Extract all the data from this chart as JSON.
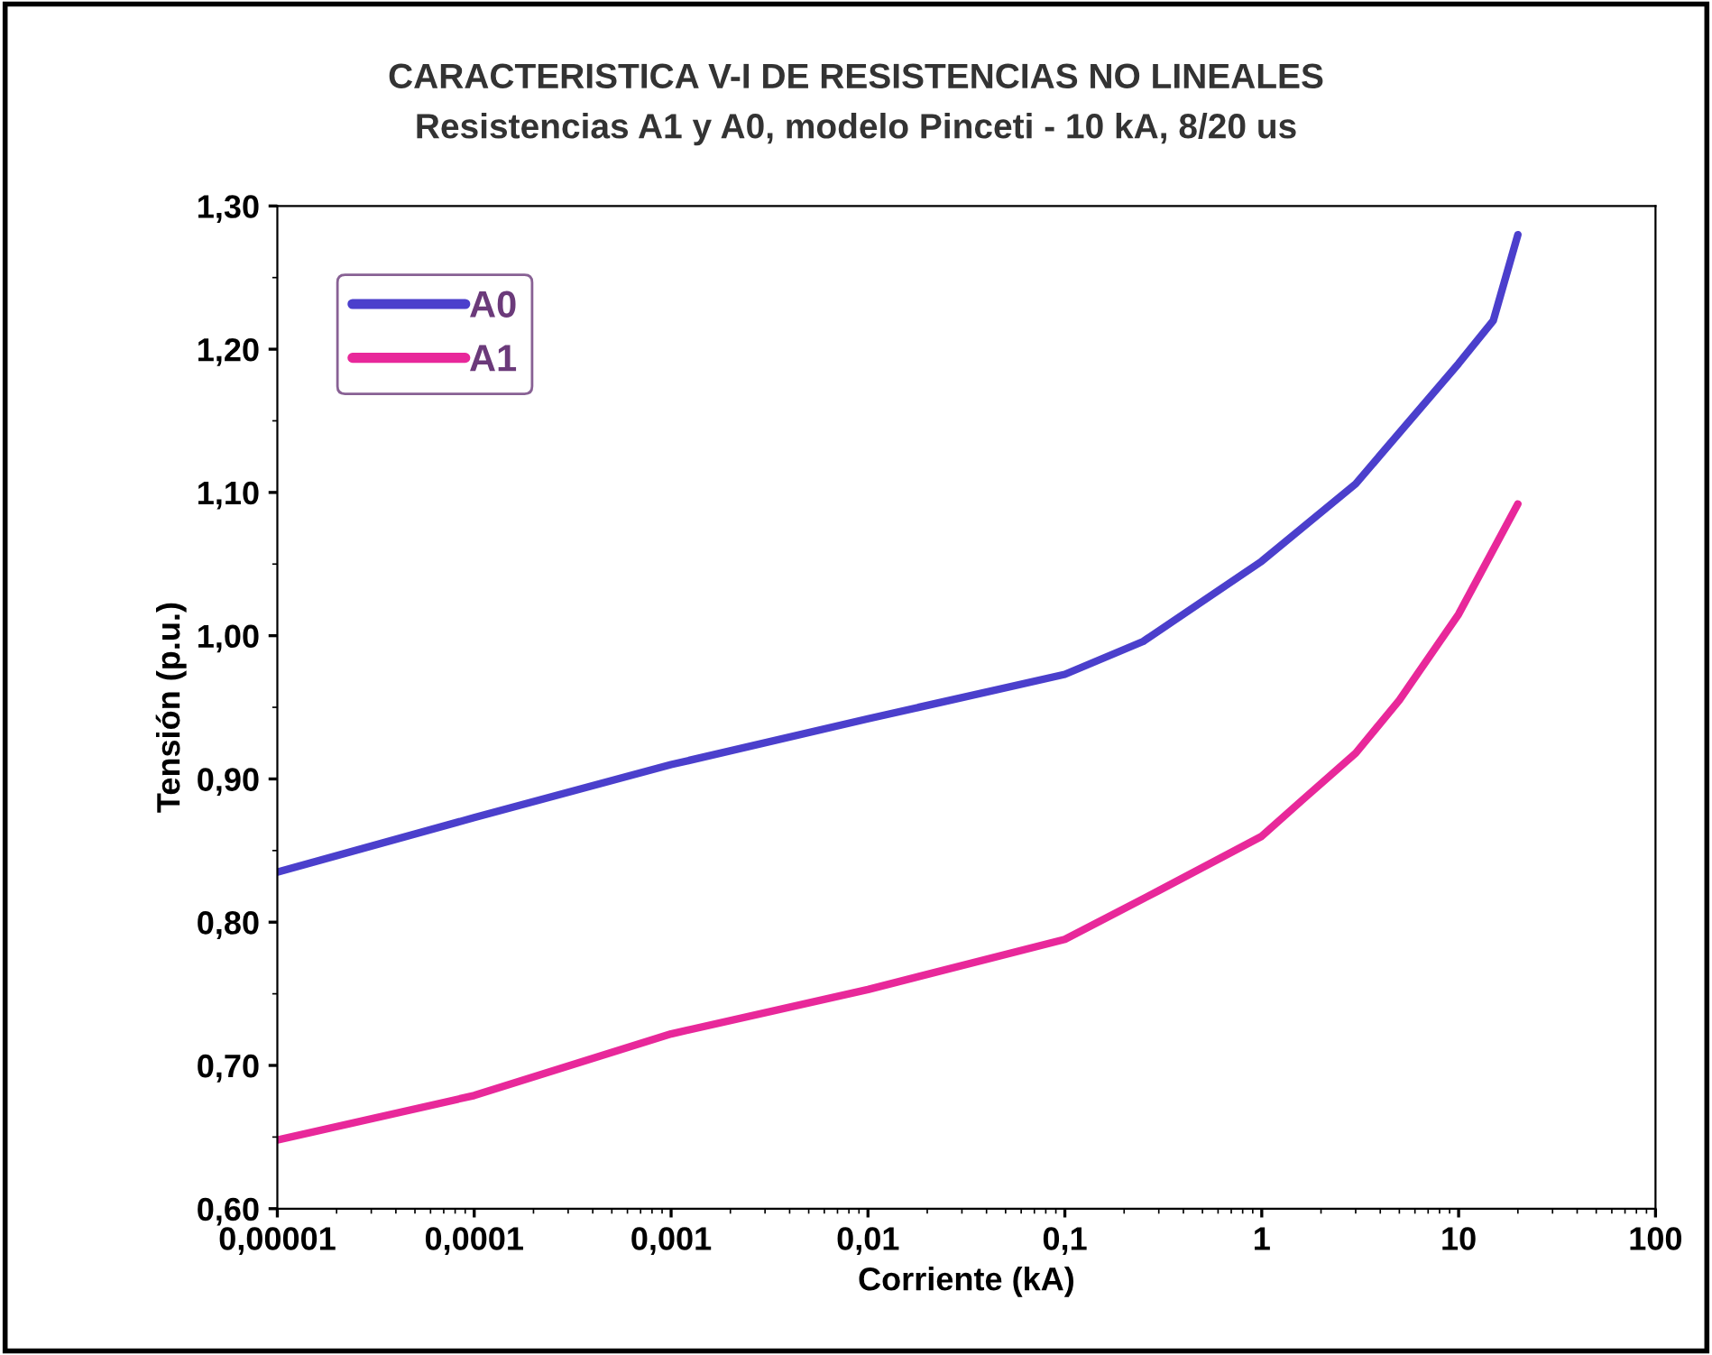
{
  "chart_data": {
    "type": "line",
    "title": "CARACTERISTICA V-I DE RESISTENCIAS NO LINEALES",
    "subtitle": "Resistencias A1 y A0, modelo Pinceti - 10 kA, 8/20 us",
    "xlabel": "Corriente (kA)",
    "ylabel": "Tensión (p.u.)",
    "log": "x",
    "grid": false,
    "legend": "top left",
    "marker": "none",
    "line_style": "solid",
    "xlim": [
      1e-05,
      100
    ],
    "xticks": [
      {
        "value": 1e-05,
        "label": "0,00001"
      },
      {
        "value": 0.0001,
        "label": "0,0001"
      },
      {
        "value": 0.001,
        "label": "0,001"
      },
      {
        "value": 0.01,
        "label": "0,01"
      },
      {
        "value": 0.1,
        "label": "0,1"
      },
      {
        "value": 1,
        "label": "1"
      },
      {
        "value": 10,
        "label": "10"
      },
      {
        "value": 100,
        "label": "100"
      }
    ],
    "ylim": [
      0.6,
      1.3
    ],
    "yticks": [
      {
        "value": 0.6,
        "label": "0,60"
      },
      {
        "value": 0.7,
        "label": "0,70"
      },
      {
        "value": 0.8,
        "label": "0,80"
      },
      {
        "value": 0.9,
        "label": "0,90"
      },
      {
        "value": 1.0,
        "label": "1,00"
      },
      {
        "value": 1.1,
        "label": "1,10"
      },
      {
        "value": 1.2,
        "label": "1,20"
      },
      {
        "value": 1.3,
        "label": "1,30"
      }
    ],
    "series": [
      {
        "name": "A0",
        "color": "#4b3fcc",
        "x": [
          1e-05,
          0.0001,
          0.001,
          0.01,
          0.1,
          0.25,
          1,
          3,
          10,
          15,
          20
        ],
        "values": [
          0.835,
          0.873,
          0.91,
          0.942,
          0.973,
          0.996,
          1.052,
          1.106,
          1.19,
          1.22,
          1.28
        ]
      },
      {
        "name": "A1",
        "color": "#e8289a",
        "x": [
          1e-05,
          0.0001,
          0.001,
          0.01,
          0.1,
          0.3,
          1,
          1.6,
          3,
          5,
          10,
          20
        ],
        "values": [
          0.648,
          0.679,
          0.722,
          0.753,
          0.788,
          0.822,
          0.86,
          0.885,
          0.918,
          0.955,
          1.015,
          1.092
        ]
      }
    ]
  }
}
